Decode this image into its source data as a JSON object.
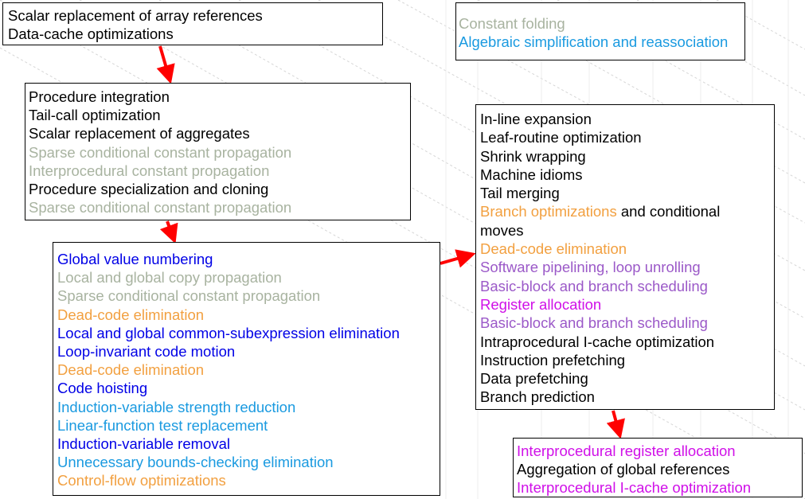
{
  "colors": {
    "black": "#000000",
    "gray": "#a8b3a0",
    "orange": "#f2a040",
    "blue": "#0000e6",
    "sky": "#1a9ae0",
    "purple": "#9b59c8",
    "magenta": "#d010e8",
    "arrow": "#ff0000"
  },
  "boxes": [
    {
      "id": "box-1",
      "lines": [
        {
          "segments": [
            {
              "text": "Scalar replacement of array references",
              "color": "black"
            }
          ]
        },
        {
          "segments": [
            {
              "text": "Data-cache optimizations",
              "color": "black"
            }
          ]
        }
      ]
    },
    {
      "id": "box-2",
      "lines": [
        {
          "segments": [
            {
              "text": "Procedure integration",
              "color": "black"
            }
          ]
        },
        {
          "segments": [
            {
              "text": "Tail-call optimization",
              "color": "black"
            }
          ]
        },
        {
          "segments": [
            {
              "text": "Scalar replacement of aggregates",
              "color": "black"
            }
          ]
        },
        {
          "segments": [
            {
              "text": "Sparse conditional constant propagation",
              "color": "gray"
            }
          ]
        },
        {
          "segments": [
            {
              "text": "Interprocedural constant propagation",
              "color": "gray"
            }
          ]
        },
        {
          "segments": [
            {
              "text": "Procedure specialization and cloning",
              "color": "black"
            }
          ]
        },
        {
          "segments": [
            {
              "text": "Sparse conditional constant propagation",
              "color": "gray"
            }
          ]
        }
      ]
    },
    {
      "id": "box-3",
      "lines": [
        {
          "segments": [
            {
              "text": "Global value numbering",
              "color": "blue"
            }
          ]
        },
        {
          "segments": [
            {
              "text": "Local and global copy propagation",
              "color": "gray"
            }
          ]
        },
        {
          "segments": [
            {
              "text": "Sparse conditional constant propagation",
              "color": "gray"
            }
          ]
        },
        {
          "segments": [
            {
              "text": "Dead-code elimination",
              "color": "orange"
            }
          ]
        },
        {
          "segments": [
            {
              "text": "Local and global common-subexpression elimination",
              "color": "blue"
            }
          ]
        },
        {
          "segments": [
            {
              "text": "Loop-invariant code motion",
              "color": "blue"
            }
          ]
        },
        {
          "segments": [
            {
              "text": "Dead-code elimination",
              "color": "orange"
            }
          ]
        },
        {
          "segments": [
            {
              "text": "Code hoisting",
              "color": "blue"
            }
          ]
        },
        {
          "segments": [
            {
              "text": "Induction-variable strength reduction",
              "color": "sky"
            }
          ]
        },
        {
          "segments": [
            {
              "text": "Linear-function test replacement",
              "color": "sky"
            }
          ]
        },
        {
          "segments": [
            {
              "text": "Induction-variable removal",
              "color": "blue"
            }
          ]
        },
        {
          "segments": [
            {
              "text": "Unnecessary bounds-checking elimination",
              "color": "sky"
            }
          ]
        },
        {
          "segments": [
            {
              "text": "Control-flow optimizations",
              "color": "orange"
            }
          ]
        }
      ]
    },
    {
      "id": "box-4",
      "lines": [
        {
          "segments": [
            {
              "text": "In-line expansion",
              "color": "black"
            }
          ]
        },
        {
          "segments": [
            {
              "text": "Leaf-routine optimization",
              "color": "black"
            }
          ]
        },
        {
          "segments": [
            {
              "text": "Shrink wrapping",
              "color": "black"
            }
          ]
        },
        {
          "segments": [
            {
              "text": "Machine idioms",
              "color": "black"
            }
          ]
        },
        {
          "segments": [
            {
              "text": "Tail merging",
              "color": "black"
            }
          ]
        },
        {
          "wrap": true,
          "segments": [
            {
              "text": "Branch optimizations",
              "color": "orange"
            },
            {
              "text": " and conditional moves",
              "color": "black"
            }
          ]
        },
        {
          "segments": [
            {
              "text": "Dead-code elimination",
              "color": "orange"
            }
          ]
        },
        {
          "segments": [
            {
              "text": "Software pipelining, loop unrolling",
              "color": "purple"
            }
          ]
        },
        {
          "segments": [
            {
              "text": "Basic-block and branch scheduling",
              "color": "purple"
            }
          ]
        },
        {
          "segments": [
            {
              "text": "Register allocation",
              "color": "magenta"
            }
          ]
        },
        {
          "segments": [
            {
              "text": "Basic-block and branch scheduling",
              "color": "purple"
            }
          ]
        },
        {
          "segments": [
            {
              "text": "Intraprocedural I-cache optimization",
              "color": "black"
            }
          ]
        },
        {
          "segments": [
            {
              "text": "Instruction prefetching",
              "color": "black"
            }
          ]
        },
        {
          "segments": [
            {
              "text": "Data prefetching",
              "color": "black"
            }
          ]
        },
        {
          "segments": [
            {
              "text": "Branch prediction",
              "color": "black"
            }
          ]
        }
      ]
    },
    {
      "id": "box-5",
      "lines": [
        {
          "segments": [
            {
              "text": "Interprocedural register allocation",
              "color": "magenta"
            }
          ]
        },
        {
          "segments": [
            {
              "text": "Aggregation of global references",
              "color": "black"
            }
          ]
        },
        {
          "segments": [
            {
              "text": "Interprocedural I-cache optimization",
              "color": "magenta"
            }
          ]
        }
      ]
    },
    {
      "id": "box-6",
      "lines": [
        {
          "segments": [
            {
              "text": "Constant folding",
              "color": "gray"
            }
          ]
        },
        {
          "segments": [
            {
              "text": "Algebraic simplification and reassociation",
              "color": "sky"
            }
          ]
        }
      ]
    }
  ]
}
